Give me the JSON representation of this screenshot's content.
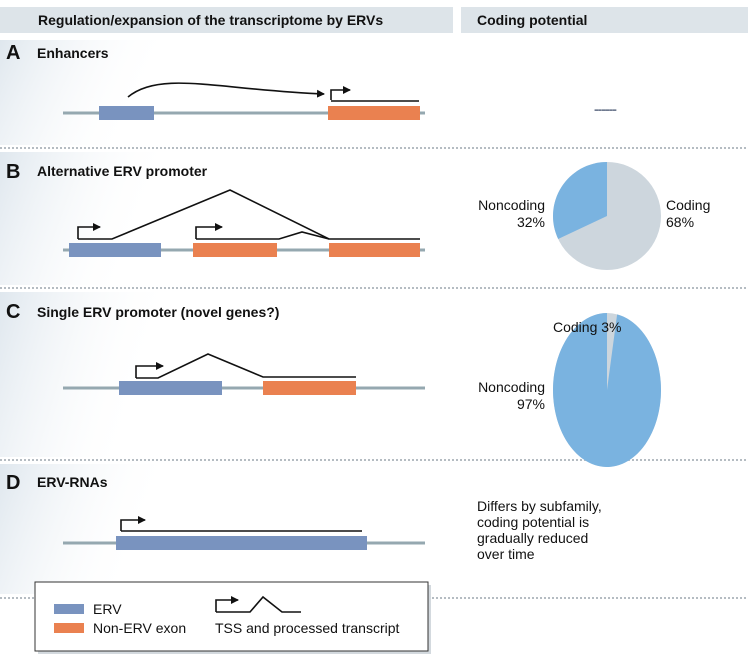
{
  "headers": {
    "left": "Regulation/expansion of the transcriptome by ERVs",
    "right": "Coding potential"
  },
  "colors": {
    "erv": "#7993bf",
    "non_erv_exon": "#ea8150",
    "noncoding": "#7ab3e0",
    "coding": "#cdd6dd",
    "genome_line": "#95a8b0",
    "header_bg": "#dde4e9"
  },
  "sections": [
    {
      "letter": "A",
      "title": "Enhancers",
      "coding_potential": "------"
    },
    {
      "letter": "B",
      "title": "Alternative ERV promoter",
      "pie": {
        "noncoding_label": "Noncoding",
        "noncoding_pct": 32,
        "noncoding_text": "32%",
        "coding_label": "Coding",
        "coding_pct": 68,
        "coding_text": "68%"
      }
    },
    {
      "letter": "C",
      "title": "Single ERV promoter (novel genes?)",
      "pie": {
        "noncoding_label": "Noncoding",
        "noncoding_pct": 97,
        "noncoding_text": "97%",
        "coding_label": "Coding 3%",
        "coding_pct": 3
      }
    },
    {
      "letter": "D",
      "title": "ERV-RNAs",
      "note": [
        "Differs by subfamily,",
        "coding potential is",
        "gradually reduced",
        "over time"
      ]
    }
  ],
  "legend": {
    "erv": "ERV",
    "non_erv_exon": "Non-ERV exon",
    "tss": "TSS and processed transcript"
  }
}
